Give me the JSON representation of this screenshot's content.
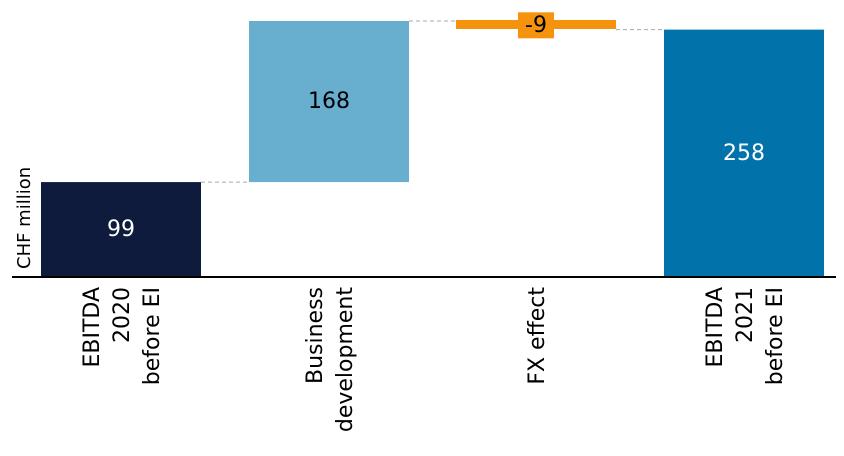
{
  "chart_data": {
    "type": "bar",
    "subtype": "waterfall",
    "ylabel": "CHF million",
    "categories": [
      [
        "EBITDA",
        "2020",
        "before EI"
      ],
      [
        "Business",
        "development"
      ],
      [
        "FX effect"
      ],
      [
        "EBITDA",
        "2021",
        "before EI"
      ]
    ],
    "values": [
      99,
      168,
      -9,
      258
    ],
    "value_labels": [
      "99",
      "168",
      "-9",
      "258"
    ],
    "kinds": [
      "total",
      "delta",
      "delta",
      "total"
    ],
    "colors": [
      "#0f1b3d",
      "#68aecf",
      "#f6930e",
      "#0273aa"
    ],
    "label_colors": [
      "#ffffff",
      "#000000",
      "#000000",
      "#ffffff"
    ],
    "connectors": true,
    "grid": false,
    "ylim": [
      0,
      267
    ]
  }
}
